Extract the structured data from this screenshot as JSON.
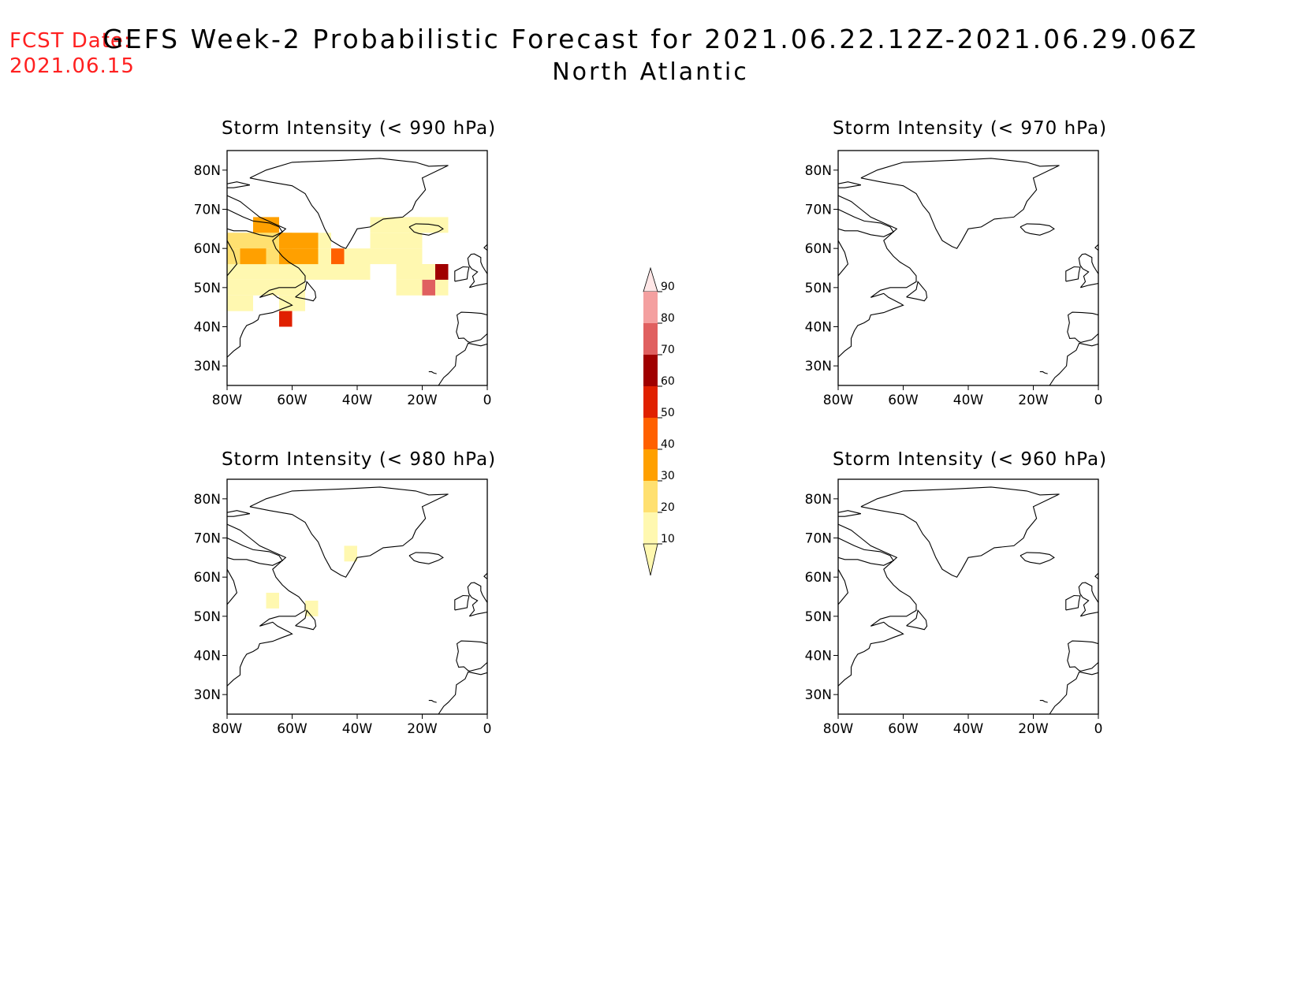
{
  "fcst": {
    "line1": "FCST Date:",
    "line2": "2021.06.15"
  },
  "title": {
    "line1": "GEFS Week-2 Probabilistic Forecast for 2021.06.22.12Z-2021.06.29.06Z",
    "line2": "North Atlantic"
  },
  "axes": {
    "x_ticks": [
      "80W",
      "60W",
      "40W",
      "20W",
      "0"
    ],
    "y_ticks": [
      "80N",
      "70N",
      "60N",
      "50N",
      "40N",
      "30N"
    ]
  },
  "panels": [
    {
      "id": "p990",
      "title": "Storm Intensity (< 990 hPa)"
    },
    {
      "id": "p970",
      "title": "Storm Intensity (< 970 hPa)"
    },
    {
      "id": "p980",
      "title": "Storm Intensity (< 980 hPa)"
    },
    {
      "id": "p960",
      "title": "Storm Intensity (< 960 hPa)"
    }
  ],
  "colorbar": {
    "levels": [
      "10",
      "20",
      "30",
      "40",
      "50",
      "60",
      "70",
      "80",
      "90"
    ],
    "colors": [
      "#fff8b0",
      "#ffe070",
      "#ffa000",
      "#ff6000",
      "#e02000",
      "#a00000",
      "#e06060",
      "#f4a0a0",
      "#ffe6e6"
    ]
  }
}
